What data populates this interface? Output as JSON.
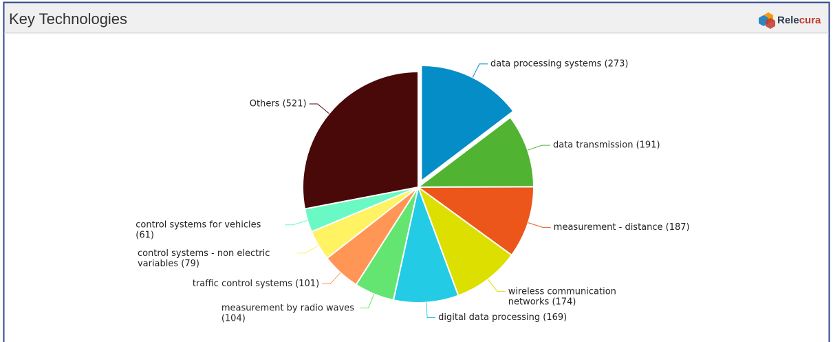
{
  "header": {
    "title": "Key Technologies",
    "logo": [
      "Rele",
      "cura"
    ]
  },
  "chart_data": {
    "type": "pie",
    "values": [
      273,
      191,
      187,
      174,
      169,
      104,
      101,
      79,
      61,
      521
    ],
    "value_labels": [
      "data processing systems (273)",
      "data transmission (191)",
      "measurement - distance (187)",
      "wireless communication networks (174)",
      "digital data processing (169)",
      "measurement by radio waves (104)",
      "traffic control systems (101)",
      "control systems - non electric variables (79)",
      "control systems for vehicles (61)",
      "Others (521)"
    ],
    "colors": [
      "#058dc7",
      "#50b432",
      "#ed561b",
      "#dddf00",
      "#24cbe5",
      "#64e572",
      "#ff9655",
      "#fff263",
      "#6af9c4",
      "#4a0909"
    ],
    "sliced": [
      0
    ]
  }
}
